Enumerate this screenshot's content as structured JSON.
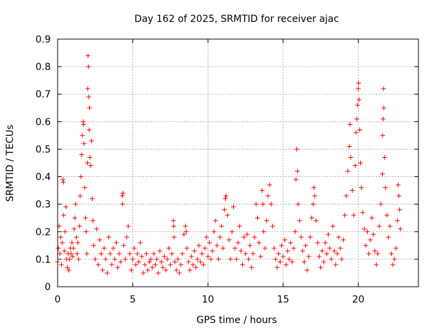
{
  "chart_data": {
    "type": "scatter",
    "title": "Day 162 of 2025, SRMTID for receiver ajac",
    "xlabel": "GPS time / hours",
    "ylabel": "SRMTID / TECUs",
    "xlim": [
      0,
      24
    ],
    "ylim": [
      0,
      0.9
    ],
    "xticks": [
      0,
      5,
      10,
      15,
      20
    ],
    "yticks": [
      0,
      0.1,
      0.2,
      0.3,
      0.4,
      0.5,
      0.6,
      0.7,
      0.8,
      0.9
    ],
    "grid": true,
    "marker": "+",
    "marker_color": "#ff0000",
    "series": [
      {
        "name": "SRMTID",
        "points": [
          [
            0.0,
            0.09
          ],
          [
            0.05,
            0.14
          ],
          [
            0.1,
            0.22
          ],
          [
            0.15,
            0.12
          ],
          [
            0.2,
            0.18
          ],
          [
            0.25,
            0.08
          ],
          [
            0.3,
            0.16
          ],
          [
            0.35,
            0.39
          ],
          [
            0.38,
            0.38
          ],
          [
            0.4,
            0.26
          ],
          [
            0.45,
            0.13
          ],
          [
            0.5,
            0.2
          ],
          [
            0.55,
            0.29
          ],
          [
            0.6,
            0.1
          ],
          [
            0.65,
            0.07
          ],
          [
            0.7,
            0.12
          ],
          [
            0.75,
            0.06
          ],
          [
            0.8,
            0.1
          ],
          [
            0.85,
            0.14
          ],
          [
            0.9,
            0.12
          ],
          [
            0.95,
            0.16
          ],
          [
            1.0,
            0.11
          ],
          [
            1.05,
            0.14
          ],
          [
            1.1,
            0.21
          ],
          [
            1.15,
            0.25
          ],
          [
            1.2,
            0.3
          ],
          [
            1.25,
            0.18
          ],
          [
            1.3,
            0.12
          ],
          [
            1.35,
            0.16
          ],
          [
            1.4,
            0.1
          ],
          [
            1.45,
            0.22
          ],
          [
            1.5,
            0.33
          ],
          [
            1.55,
            0.4
          ],
          [
            1.6,
            0.48
          ],
          [
            1.65,
            0.55
          ],
          [
            1.7,
            0.6
          ],
          [
            1.72,
            0.59
          ],
          [
            1.75,
            0.52
          ],
          [
            1.8,
            0.36
          ],
          [
            1.85,
            0.25
          ],
          [
            1.9,
            0.2
          ],
          [
            1.95,
            0.12
          ],
          [
            1.98,
            0.45
          ],
          [
            2.0,
            0.72
          ],
          [
            2.02,
            0.84
          ],
          [
            2.05,
            0.8
          ],
          [
            2.07,
            0.69
          ],
          [
            2.1,
            0.57
          ],
          [
            2.12,
            0.65
          ],
          [
            2.15,
            0.47
          ],
          [
            2.2,
            0.44
          ],
          [
            2.25,
            0.53
          ],
          [
            2.3,
            0.32
          ],
          [
            2.35,
            0.24
          ],
          [
            2.4,
            0.15
          ],
          [
            2.5,
            0.1
          ],
          [
            2.6,
            0.21
          ],
          [
            2.7,
            0.08
          ],
          [
            2.8,
            0.17
          ],
          [
            2.9,
            0.12
          ],
          [
            3.0,
            0.06
          ],
          [
            3.1,
            0.14
          ],
          [
            3.2,
            0.1
          ],
          [
            3.3,
            0.05
          ],
          [
            3.4,
            0.18
          ],
          [
            3.5,
            0.12
          ],
          [
            3.6,
            0.08
          ],
          [
            3.7,
            0.14
          ],
          [
            3.8,
            0.1
          ],
          [
            3.9,
            0.16
          ],
          [
            4.0,
            0.07
          ],
          [
            4.1,
            0.12
          ],
          [
            4.2,
            0.09
          ],
          [
            4.3,
            0.33
          ],
          [
            4.32,
            0.3
          ],
          [
            4.35,
            0.34
          ],
          [
            4.4,
            0.15
          ],
          [
            4.5,
            0.1
          ],
          [
            4.6,
            0.18
          ],
          [
            4.7,
            0.22
          ],
          [
            4.8,
            0.12
          ],
          [
            4.9,
            0.06
          ],
          [
            5.0,
            0.1
          ],
          [
            5.1,
            0.14
          ],
          [
            5.2,
            0.08
          ],
          [
            5.3,
            0.12
          ],
          [
            5.4,
            0.09
          ],
          [
            5.5,
            0.16
          ],
          [
            5.6,
            0.11
          ],
          [
            5.7,
            0.05
          ],
          [
            5.8,
            0.08
          ],
          [
            5.9,
            0.12
          ],
          [
            6.0,
            0.06
          ],
          [
            6.1,
            0.09
          ],
          [
            6.2,
            0.1
          ],
          [
            6.3,
            0.07
          ],
          [
            6.4,
            0.12
          ],
          [
            6.5,
            0.08
          ],
          [
            6.6,
            0.1
          ],
          [
            6.7,
            0.05
          ],
          [
            6.8,
            0.13
          ],
          [
            6.9,
            0.09
          ],
          [
            7.0,
            0.07
          ],
          [
            7.1,
            0.11
          ],
          [
            7.2,
            0.06
          ],
          [
            7.3,
            0.1
          ],
          [
            7.4,
            0.14
          ],
          [
            7.5,
            0.08
          ],
          [
            7.6,
            0.12
          ],
          [
            7.7,
            0.24
          ],
          [
            7.72,
            0.22
          ],
          [
            7.75,
            0.18
          ],
          [
            7.8,
            0.09
          ],
          [
            7.9,
            0.06
          ],
          [
            8.0,
            0.1
          ],
          [
            8.1,
            0.05
          ],
          [
            8.2,
            0.08
          ],
          [
            8.3,
            0.12
          ],
          [
            8.4,
            0.19
          ],
          [
            8.5,
            0.22
          ],
          [
            8.55,
            0.2
          ],
          [
            8.6,
            0.14
          ],
          [
            8.7,
            0.09
          ],
          [
            8.8,
            0.06
          ],
          [
            8.9,
            0.11
          ],
          [
            9.0,
            0.08
          ],
          [
            9.1,
            0.13
          ],
          [
            9.2,
            0.07
          ],
          [
            9.3,
            0.1
          ],
          [
            9.4,
            0.15
          ],
          [
            9.5,
            0.09
          ],
          [
            9.6,
            0.12
          ],
          [
            9.7,
            0.08
          ],
          [
            9.8,
            0.14
          ],
          [
            9.9,
            0.18
          ],
          [
            10.0,
            0.11
          ],
          [
            10.1,
            0.16
          ],
          [
            10.2,
            0.1
          ],
          [
            10.3,
            0.13
          ],
          [
            10.4,
            0.2
          ],
          [
            10.5,
            0.24
          ],
          [
            10.6,
            0.15
          ],
          [
            10.7,
            0.1
          ],
          [
            10.8,
            0.18
          ],
          [
            10.9,
            0.22
          ],
          [
            11.0,
            0.14
          ],
          [
            11.1,
            0.28
          ],
          [
            11.15,
            0.32
          ],
          [
            11.2,
            0.33
          ],
          [
            11.3,
            0.26
          ],
          [
            11.4,
            0.17
          ],
          [
            11.5,
            0.1
          ],
          [
            11.6,
            0.2
          ],
          [
            11.7,
            0.29
          ],
          [
            11.8,
            0.14
          ],
          [
            11.9,
            0.1
          ],
          [
            12.0,
            0.16
          ],
          [
            12.1,
            0.22
          ],
          [
            12.2,
            0.13
          ],
          [
            12.3,
            0.08
          ],
          [
            12.4,
            0.18
          ],
          [
            12.5,
            0.12
          ],
          [
            12.6,
            0.19
          ],
          [
            12.7,
            0.1
          ],
          [
            12.8,
            0.15
          ],
          [
            12.9,
            0.07
          ],
          [
            13.0,
            0.12
          ],
          [
            13.1,
            0.18
          ],
          [
            13.2,
            0.3
          ],
          [
            13.3,
            0.25
          ],
          [
            13.4,
            0.16
          ],
          [
            13.5,
            0.11
          ],
          [
            13.6,
            0.35
          ],
          [
            13.65,
            0.3
          ],
          [
            13.7,
            0.2
          ],
          [
            13.8,
            0.14
          ],
          [
            13.9,
            0.24
          ],
          [
            14.0,
            0.33
          ],
          [
            14.1,
            0.37
          ],
          [
            14.2,
            0.3
          ],
          [
            14.3,
            0.22
          ],
          [
            14.4,
            0.14
          ],
          [
            14.5,
            0.1
          ],
          [
            14.6,
            0.07
          ],
          [
            14.7,
            0.12
          ],
          [
            14.8,
            0.09
          ],
          [
            14.9,
            0.15
          ],
          [
            15.0,
            0.11
          ],
          [
            15.1,
            0.17
          ],
          [
            15.2,
            0.08
          ],
          [
            15.3,
            0.13
          ],
          [
            15.4,
            0.1
          ],
          [
            15.5,
            0.16
          ],
          [
            15.6,
            0.09
          ],
          [
            15.7,
            0.14
          ],
          [
            15.8,
            0.2
          ],
          [
            15.85,
            0.39
          ],
          [
            15.9,
            0.5
          ],
          [
            15.95,
            0.42
          ],
          [
            16.0,
            0.3
          ],
          [
            16.1,
            0.24
          ],
          [
            16.2,
            0.18
          ],
          [
            16.3,
            0.13
          ],
          [
            16.4,
            0.09
          ],
          [
            16.5,
            0.15
          ],
          [
            16.6,
            0.06
          ],
          [
            16.7,
            0.11
          ],
          [
            16.8,
            0.18
          ],
          [
            16.9,
            0.25
          ],
          [
            17.0,
            0.3
          ],
          [
            17.05,
            0.36
          ],
          [
            17.1,
            0.33
          ],
          [
            17.2,
            0.24
          ],
          [
            17.3,
            0.16
          ],
          [
            17.4,
            0.11
          ],
          [
            17.5,
            0.07
          ],
          [
            17.6,
            0.13
          ],
          [
            17.7,
            0.09
          ],
          [
            17.8,
            0.16
          ],
          [
            17.9,
            0.12
          ],
          [
            18.0,
            0.19
          ],
          [
            18.1,
            0.14
          ],
          [
            18.2,
            0.1
          ],
          [
            18.3,
            0.22
          ],
          [
            18.4,
            0.13
          ],
          [
            18.5,
            0.08
          ],
          [
            18.6,
            0.12
          ],
          [
            18.7,
            0.18
          ],
          [
            18.8,
            0.14
          ],
          [
            18.9,
            0.1
          ],
          [
            19.0,
            0.17
          ],
          [
            19.1,
            0.26
          ],
          [
            19.2,
            0.33
          ],
          [
            19.3,
            0.42
          ],
          [
            19.4,
            0.51
          ],
          [
            19.45,
            0.59
          ],
          [
            19.5,
            0.47
          ],
          [
            19.6,
            0.35
          ],
          [
            19.7,
            0.26
          ],
          [
            19.8,
            0.44
          ],
          [
            19.85,
            0.56
          ],
          [
            19.9,
            0.61
          ],
          [
            19.95,
            0.66
          ],
          [
            20.0,
            0.72
          ],
          [
            20.02,
            0.74
          ],
          [
            20.05,
            0.68
          ],
          [
            20.1,
            0.57
          ],
          [
            20.15,
            0.45
          ],
          [
            20.2,
            0.36
          ],
          [
            20.3,
            0.27
          ],
          [
            20.4,
            0.21
          ],
          [
            20.5,
            0.15
          ],
          [
            20.6,
            0.2
          ],
          [
            20.7,
            0.12
          ],
          [
            20.8,
            0.17
          ],
          [
            20.9,
            0.25
          ],
          [
            21.0,
            0.19
          ],
          [
            21.1,
            0.13
          ],
          [
            21.2,
            0.08
          ],
          [
            21.3,
            0.12
          ],
          [
            21.4,
            0.22
          ],
          [
            21.5,
            0.3
          ],
          [
            21.6,
            0.41
          ],
          [
            21.62,
            0.55
          ],
          [
            21.65,
            0.61
          ],
          [
            21.68,
            0.72
          ],
          [
            21.7,
            0.65
          ],
          [
            21.75,
            0.47
          ],
          [
            21.8,
            0.36
          ],
          [
            21.9,
            0.26
          ],
          [
            22.0,
            0.18
          ],
          [
            22.1,
            0.22
          ],
          [
            22.2,
            0.12
          ],
          [
            22.3,
            0.08
          ],
          [
            22.4,
            0.1
          ],
          [
            22.5,
            0.14
          ],
          [
            22.6,
            0.24
          ],
          [
            22.65,
            0.37
          ],
          [
            22.7,
            0.33
          ],
          [
            22.75,
            0.28
          ],
          [
            22.8,
            0.21
          ]
        ]
      }
    ]
  }
}
